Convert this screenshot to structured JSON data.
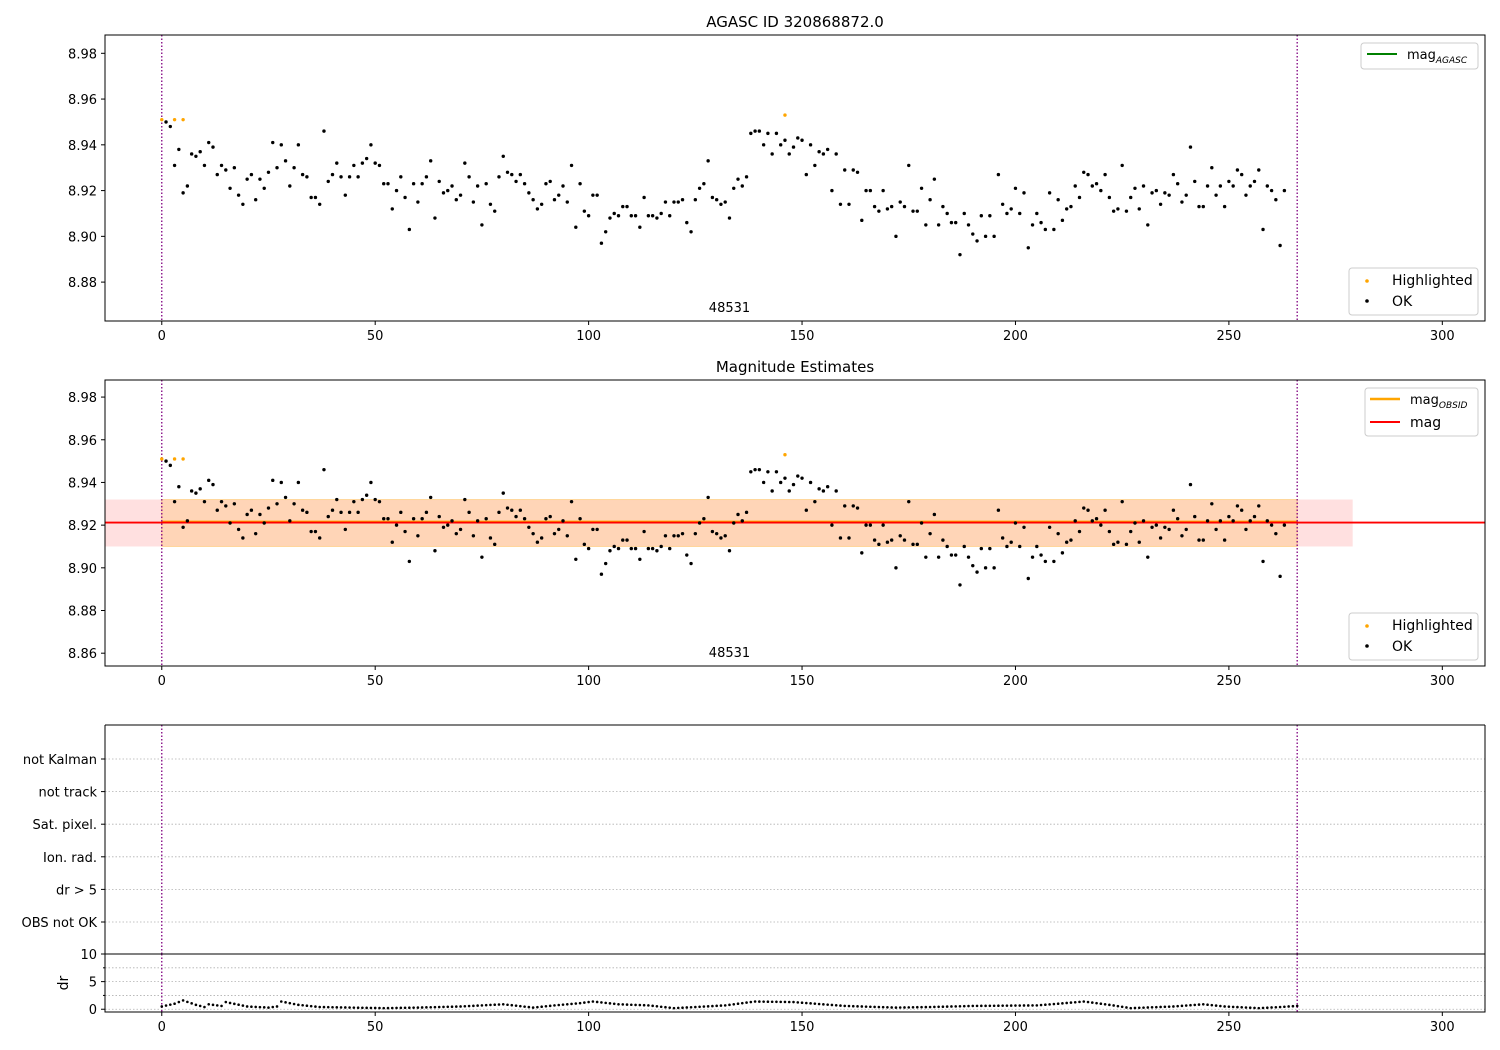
{
  "chart_data": [
    {
      "type": "scatter",
      "title": "AGASC ID 320868872.0",
      "xlim": [
        -13.3,
        310
      ],
      "ylim": [
        8.863,
        8.988
      ],
      "xticks": [
        0,
        50,
        100,
        150,
        200,
        250,
        300
      ],
      "yticks": [
        8.88,
        8.9,
        8.92,
        8.94,
        8.96,
        8.98
      ],
      "ytick_format": 2,
      "grid": false,
      "vlines": [
        0,
        266
      ],
      "annotation": "48531",
      "annotation_x": 133,
      "legend_upper": {
        "placement": "upper-right",
        "entries": [
          {
            "label": "mag",
            "subscript": "AGASC",
            "kind": "line",
            "color": "#008000"
          }
        ]
      },
      "legend_lower": {
        "placement": "lower-right",
        "entries": [
          {
            "label": "Highlighted",
            "kind": "dot",
            "color": "#ffa500"
          },
          {
            "label": "OK",
            "kind": "dot",
            "color": "#000000"
          }
        ]
      },
      "series": [
        {
          "name": "Highlighted",
          "color": "#ffa500",
          "x": [
            0,
            3,
            5,
            146
          ],
          "y": [
            8.951,
            8.951,
            8.951,
            8.953
          ]
        },
        {
          "name": "OK",
          "color": "#000000",
          "ref": "ok_magnitudes"
        }
      ]
    },
    {
      "type": "scatter",
      "title": "Magnitude Estimates",
      "xlim": [
        -13.3,
        310
      ],
      "ylim": [
        8.854,
        8.988
      ],
      "xticks": [
        0,
        50,
        100,
        150,
        200,
        250,
        300
      ],
      "yticks": [
        8.86,
        8.88,
        8.9,
        8.92,
        8.94,
        8.96,
        8.98
      ],
      "ytick_format": 2,
      "grid": false,
      "vlines": [
        0,
        266
      ],
      "annotation": "48531",
      "annotation_x": 133,
      "mag_line": 8.9212,
      "mag_band": [
        8.91,
        8.932
      ],
      "mag_band_x": [
        -13.3,
        279
      ],
      "obsid_band": [
        8.91,
        8.932
      ],
      "obsid_band_x": [
        0,
        266
      ],
      "legend_upper": {
        "placement": "upper-right",
        "entries": [
          {
            "label": "mag",
            "subscript": "OBSID",
            "kind": "line",
            "color": "#ffa500"
          },
          {
            "label": "mag",
            "kind": "line",
            "color": "#ff0000"
          }
        ]
      },
      "legend_lower": {
        "placement": "lower-right",
        "entries": [
          {
            "label": "Highlighted",
            "kind": "dot",
            "color": "#ffa500"
          },
          {
            "label": "OK",
            "kind": "dot",
            "color": "#000000"
          }
        ]
      },
      "series": [
        {
          "name": "Highlighted",
          "color": "#ffa500",
          "x": [
            0,
            3,
            5,
            146
          ],
          "y": [
            8.951,
            8.951,
            8.951,
            8.953
          ]
        },
        {
          "name": "OK",
          "color": "#000000",
          "ref": "ok_magnitudes"
        },
        {
          "name": "mag",
          "color": "#ff0000",
          "kind": "hline",
          "value": 8.9212
        }
      ]
    },
    {
      "type": "scatter",
      "title": "",
      "xlim": [
        -13.3,
        310
      ],
      "categories": [
        "not Kalman",
        "not track",
        "Sat. pixel.",
        "Ion. rad.",
        "dr > 5",
        "OBS not OK"
      ],
      "grid": true,
      "vlines": [
        0,
        266
      ],
      "flags": []
    },
    {
      "type": "scatter",
      "title": "",
      "ylabel": "dr",
      "xlim": [
        -13.3,
        310
      ],
      "ylim": [
        -0.5,
        10
      ],
      "xticks": [
        0,
        50,
        100,
        150,
        200,
        250,
        300
      ],
      "yticks": [
        0,
        5,
        10
      ],
      "ytick_format": 0,
      "grid": true,
      "vlines": [
        0,
        266
      ],
      "dr_segments": [
        [
          0,
          0.5
        ],
        [
          3,
          1.0
        ],
        [
          5,
          1.6
        ],
        [
          8,
          0.8
        ],
        [
          10,
          0.4
        ],
        [
          11,
          0.9
        ],
        [
          14,
          0.6
        ],
        [
          15,
          1.3
        ],
        [
          20,
          0.5
        ],
        [
          25,
          0.3
        ],
        [
          27,
          0.5
        ],
        [
          28,
          1.4
        ],
        [
          32,
          0.8
        ],
        [
          37,
          0.4
        ],
        [
          52,
          0.2
        ],
        [
          60,
          0.3
        ],
        [
          70,
          0.5
        ],
        [
          80,
          0.9
        ],
        [
          87,
          0.3
        ],
        [
          92,
          0.7
        ],
        [
          98,
          1.1
        ],
        [
          101,
          1.4
        ],
        [
          107,
          0.9
        ],
        [
          114,
          0.7
        ],
        [
          120,
          0.2
        ],
        [
          125,
          0.4
        ],
        [
          132,
          0.7
        ],
        [
          139,
          1.4
        ],
        [
          148,
          1.3
        ],
        [
          160,
          0.6
        ],
        [
          172,
          0.3
        ],
        [
          180,
          0.4
        ],
        [
          190,
          0.6
        ],
        [
          205,
          0.7
        ],
        [
          210,
          1.0
        ],
        [
          216,
          1.4
        ],
        [
          222,
          0.8
        ],
        [
          227,
          0.2
        ],
        [
          237,
          0.5
        ],
        [
          244,
          0.9
        ],
        [
          249,
          0.5
        ],
        [
          257,
          0.2
        ],
        [
          262,
          0.4
        ],
        [
          266,
          0.6
        ]
      ]
    }
  ],
  "ok_magnitudes": {
    "x_start": 1,
    "values": [
      8.95,
      8.948,
      8.931,
      8.938,
      8.919,
      8.922,
      8.936,
      8.935,
      8.937,
      8.931,
      8.941,
      8.939,
      8.927,
      8.931,
      8.929,
      8.921,
      8.93,
      8.918,
      8.914,
      8.925,
      8.927,
      8.916,
      8.925,
      8.921,
      8.928,
      8.941,
      8.93,
      8.94,
      8.933,
      8.922,
      8.93,
      8.94,
      8.927,
      8.926,
      8.917,
      8.917,
      8.914,
      8.946,
      8.924,
      8.927,
      8.932,
      8.926,
      8.918,
      8.926,
      8.931,
      8.926,
      8.932,
      8.934,
      8.94,
      8.932,
      8.931,
      8.923,
      8.923,
      8.912,
      8.92,
      8.926,
      8.917,
      8.903,
      8.923,
      8.915,
      8.923,
      8.926,
      8.933,
      8.908,
      8.924,
      8.919,
      8.92,
      8.922,
      8.916,
      8.918,
      8.932,
      8.926,
      8.915,
      8.922,
      8.905,
      8.923,
      8.914,
      8.911,
      8.926,
      8.935,
      8.928,
      8.927,
      8.924,
      8.927,
      8.923,
      8.919,
      8.916,
      8.912,
      8.914,
      8.923,
      8.924,
      8.916,
      8.918,
      8.922,
      8.915,
      8.931,
      8.904,
      8.923,
      8.911,
      8.909,
      8.918,
      8.918,
      8.897,
      8.902,
      8.908,
      8.91,
      8.909,
      8.913,
      8.913,
      8.909,
      8.909,
      8.904,
      8.917,
      8.909,
      8.909,
      8.908,
      8.91,
      8.915,
      8.909,
      8.915,
      8.915,
      8.916,
      8.906,
      8.902,
      8.916,
      8.921,
      8.923,
      8.933,
      8.917,
      8.916,
      8.914,
      8.915,
      8.908,
      8.921,
      8.925,
      8.922,
      8.926,
      8.945,
      8.946,
      8.946,
      8.94,
      8.945,
      8.936,
      8.945,
      8.94,
      8.942,
      8.936,
      8.939,
      8.943,
      8.942,
      8.927,
      8.94,
      8.931,
      8.937,
      8.936,
      8.938,
      8.92,
      8.936,
      8.914,
      8.929,
      8.914,
      8.929,
      8.928,
      8.907,
      8.92,
      8.92,
      8.913,
      8.911,
      8.92,
      8.912,
      8.913,
      8.9,
      8.915,
      8.913,
      8.931,
      8.911,
      8.911,
      8.921,
      8.905,
      8.916,
      8.925,
      8.905,
      8.913,
      8.91,
      8.906,
      8.906,
      8.892,
      8.91,
      8.905,
      8.901,
      8.898,
      8.909,
      8.9,
      8.909,
      8.9,
      8.927,
      8.914,
      8.91,
      8.912,
      8.921,
      8.91,
      8.919,
      8.895,
      8.905,
      8.91,
      8.906,
      8.903,
      8.919,
      8.903,
      8.916,
      8.907,
      8.912,
      8.913,
      8.922,
      8.917,
      8.928,
      8.927,
      8.922,
      8.923,
      8.92,
      8.927,
      8.917,
      8.911,
      8.912,
      8.931,
      8.911,
      8.917,
      8.921,
      8.912,
      8.922,
      8.905,
      8.919,
      8.92,
      8.914,
      8.919,
      8.918,
      8.927,
      8.923,
      8.915,
      8.918,
      8.939,
      8.924,
      8.913,
      8.913,
      8.922,
      8.93,
      8.918,
      8.922,
      8.913,
      8.924,
      8.922,
      8.929,
      8.927,
      8.918,
      8.922,
      8.924,
      8.929,
      8.903,
      8.922,
      8.92,
      8.916,
      8.896,
      8.92
    ]
  }
}
